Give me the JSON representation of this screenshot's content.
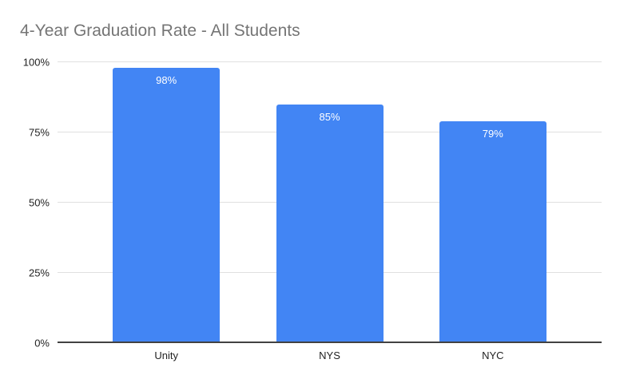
{
  "title": "4-Year Graduation Rate - All Students",
  "colors": {
    "bar": "#4285f4",
    "title_text": "#757575",
    "axis_text": "#222222",
    "value_label_text": "#ffffff",
    "gridline": "#e0e0e0",
    "baseline": "#424242",
    "background": "#ffffff"
  },
  "chart_data": {
    "type": "bar",
    "title": "4-Year Graduation Rate - All Students",
    "categories": [
      "Unity",
      "NYS",
      "NYC"
    ],
    "values": [
      98,
      85,
      79
    ],
    "value_labels": [
      "98%",
      "85%",
      "79%"
    ],
    "xlabel": "",
    "ylabel": "",
    "ylim": [
      0,
      100
    ],
    "ytick_values": [
      0,
      25,
      50,
      75,
      100
    ],
    "yticks": [
      "0%",
      "25%",
      "50%",
      "75%",
      "100%"
    ],
    "grid": true,
    "legend": "none"
  }
}
